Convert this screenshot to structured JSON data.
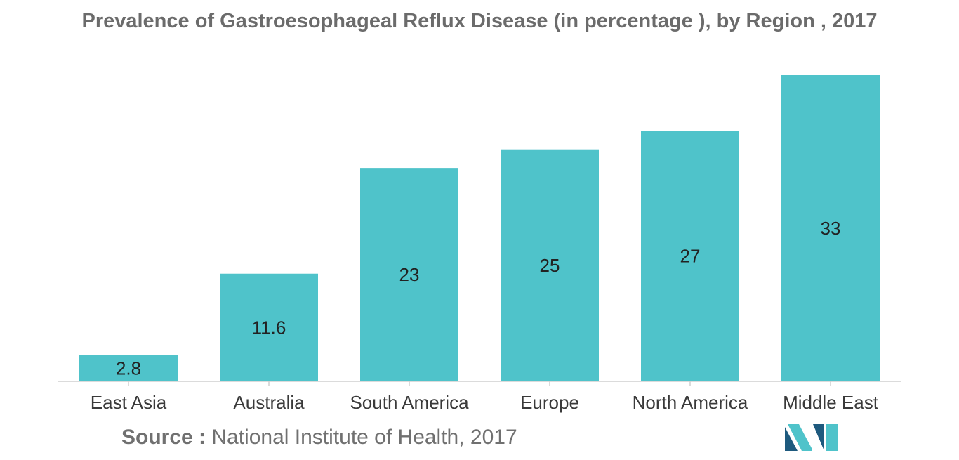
{
  "chart_data": {
    "type": "bar",
    "title": "Prevalence of Gastroesophageal Reflux Disease (in percentage ), by Region , 2017",
    "categories": [
      "East Asia",
      "Australia",
      "South America",
      "Europe",
      "North America",
      "Middle East"
    ],
    "values": [
      2.8,
      11.6,
      23,
      25,
      27,
      33
    ],
    "value_labels": [
      "2.8",
      "11.6",
      "23",
      "25",
      "27",
      "33"
    ],
    "xlabel": "",
    "ylabel": "",
    "ylim": [
      0,
      33
    ],
    "grid": false,
    "legend": "none",
    "bar_color": "#4fc3ca"
  },
  "source": {
    "label": "Source :",
    "text": "National Institute of Health, 2017"
  },
  "colors": {
    "title": "#6b6b6b",
    "axis": "#cfcfcf",
    "tick_label": "#3a3a3a",
    "value_label": "#222222",
    "logo_dark": "#1e5a7e",
    "logo_light": "#4fc3ca"
  }
}
